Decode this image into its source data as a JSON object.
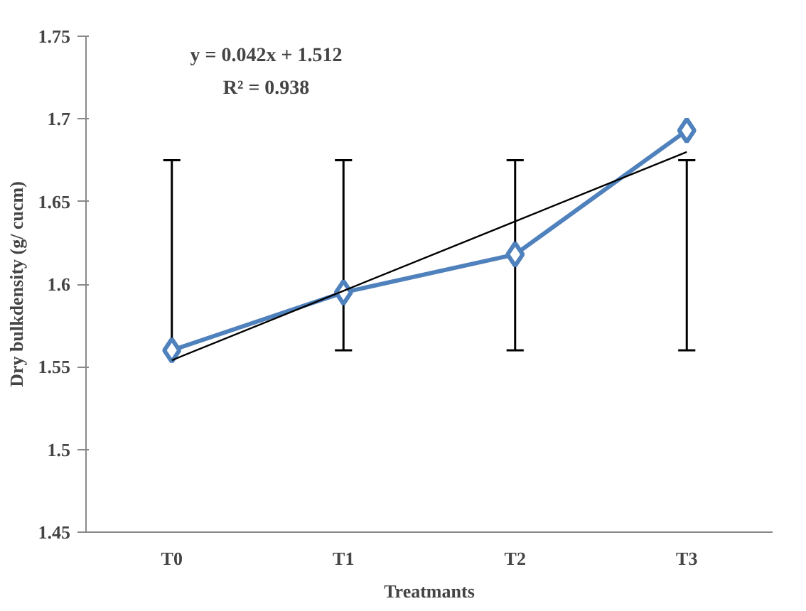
{
  "chart_data": {
    "type": "line",
    "xlabel": "Treatmants",
    "ylabel": "Dry bulkdensity (g/ cucm)",
    "categories": [
      "T0",
      "T1",
      "T2",
      "T3"
    ],
    "series": [
      {
        "color": "#4f81bd",
        "values": [
          1.56,
          1.595,
          1.618,
          1.693
        ],
        "marker": "diamond",
        "errors": [
          [
            1.56,
            1.675
          ],
          [
            1.56,
            1.675
          ],
          [
            1.56,
            1.675
          ],
          [
            1.56,
            1.675
          ]
        ]
      },
      {
        "type": "line",
        "color": "#000000",
        "values": [
          1.554,
          1.596,
          1.638,
          1.68
        ],
        "marker": "none"
      }
    ],
    "annotations": [
      "y = 0.042x + 1.512",
      "R² = 0.938"
    ],
    "ylim": [
      1.45,
      1.75
    ],
    "yticks": [
      1.45,
      1.5,
      1.55,
      1.6,
      1.65,
      1.7,
      1.75
    ],
    "grid": false
  }
}
